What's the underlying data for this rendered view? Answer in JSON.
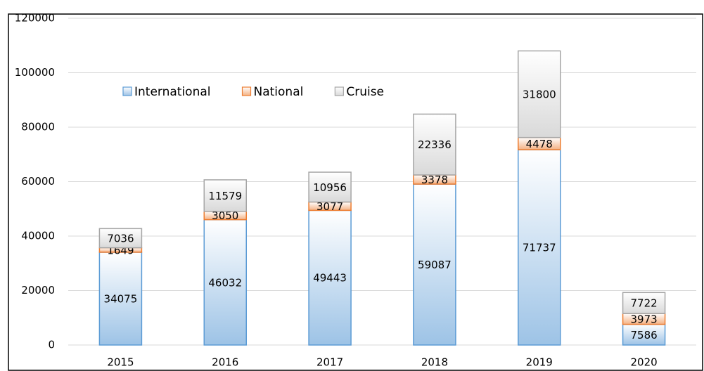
{
  "chart_data": {
    "type": "stacked-bar",
    "categories": [
      "2015",
      "2016",
      "2017",
      "2018",
      "2019",
      "2020"
    ],
    "series": [
      {
        "name": "International",
        "color": "#9dc3e6",
        "values": [
          34075,
          46032,
          49443,
          59087,
          71737,
          7586
        ]
      },
      {
        "name": "National",
        "color": "#f4b183",
        "values": [
          1649,
          3050,
          3077,
          3378,
          4478,
          3973
        ]
      },
      {
        "name": "Cruise",
        "color": "#d9d9d9",
        "values": [
          7036,
          11579,
          10956,
          22336,
          31800,
          7722
        ]
      }
    ],
    "ylim": [
      0,
      120000
    ],
    "yticks": [
      0,
      20000,
      40000,
      60000,
      80000,
      100000,
      120000
    ],
    "grid": true,
    "legend": "top-left"
  }
}
